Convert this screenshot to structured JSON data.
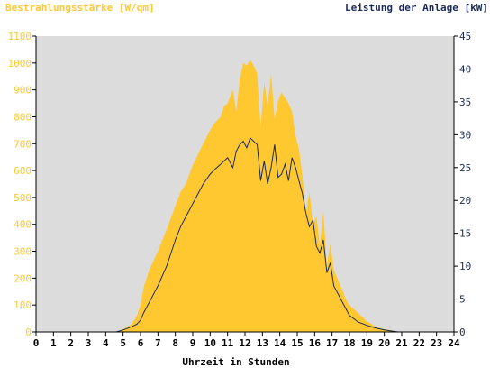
{
  "chart_data": {
    "type": "area",
    "left_axis_title": "Bestrahlungsstärke [W/qm]",
    "right_axis_title": "Leistung der Anlage [kW]",
    "xlabel": "Uhrzeit in Stunden",
    "x_range": [
      0,
      24
    ],
    "x_ticks": [
      "0",
      "1",
      "2",
      "3",
      "4",
      "5",
      "6",
      "7",
      "8",
      "9",
      "10",
      "11",
      "12",
      "13",
      "14",
      "15",
      "16",
      "17",
      "18",
      "19",
      "20",
      "21",
      "22",
      "23",
      "24"
    ],
    "left_range": [
      0,
      1100
    ],
    "left_ticks": [
      "0",
      "100",
      "200",
      "300",
      "400",
      "500",
      "600",
      "700",
      "800",
      "900",
      "1000",
      "1100"
    ],
    "right_range": [
      0,
      45
    ],
    "right_ticks": [
      "0",
      "5",
      "10",
      "15",
      "20",
      "25",
      "30",
      "35",
      "40",
      "45"
    ],
    "grid": false,
    "colors": {
      "plot_background": "#dcdcdc",
      "irradiance_fill": "#ffc830",
      "power_line": "#1a2a5a",
      "left_axis_text": "#ffc830",
      "right_axis_text": "#1a2a5a"
    },
    "series": [
      {
        "axis": "left",
        "x": [
          0,
          4.6,
          5.0,
          5.5,
          5.8,
          6.0,
          6.2,
          6.5,
          7.0,
          7.5,
          8.0,
          8.3,
          8.6,
          9.0,
          9.3,
          9.6,
          10.0,
          10.3,
          10.6,
          10.8,
          11.0,
          11.3,
          11.5,
          11.7,
          11.9,
          12.1,
          12.3,
          12.5,
          12.7,
          12.9,
          13.1,
          13.3,
          13.5,
          13.7,
          13.9,
          14.1,
          14.3,
          14.5,
          14.7,
          14.9,
          15.1,
          15.3,
          15.5,
          15.7,
          15.9,
          16.1,
          16.3,
          16.5,
          16.7,
          16.9,
          17.1,
          17.3,
          17.5,
          17.8,
          18.0,
          18.5,
          19.0,
          19.5,
          20.0,
          20.5,
          20.8,
          24
        ],
        "y": [
          0,
          0,
          10,
          30,
          60,
          100,
          170,
          230,
          300,
          380,
          470,
          520,
          550,
          620,
          660,
          700,
          750,
          780,
          800,
          840,
          850,
          900,
          820,
          940,
          1000,
          990,
          1010,
          990,
          960,
          760,
          930,
          840,
          960,
          790,
          860,
          890,
          870,
          850,
          820,
          730,
          680,
          580,
          440,
          520,
          400,
          430,
          320,
          450,
          240,
          330,
          230,
          200,
          170,
          120,
          100,
          70,
          40,
          20,
          10,
          5,
          0,
          0
        ]
      },
      {
        "axis": "right",
        "x": [
          0,
          4.6,
          5.0,
          5.5,
          5.8,
          6.0,
          6.2,
          6.5,
          7.0,
          7.5,
          8.0,
          8.3,
          8.6,
          9.0,
          9.3,
          9.6,
          10.0,
          10.3,
          10.6,
          10.8,
          11.0,
          11.3,
          11.5,
          11.7,
          11.9,
          12.1,
          12.3,
          12.5,
          12.7,
          12.9,
          13.1,
          13.3,
          13.5,
          13.7,
          13.9,
          14.1,
          14.3,
          14.5,
          14.7,
          14.9,
          15.1,
          15.3,
          15.5,
          15.7,
          15.9,
          16.1,
          16.3,
          16.5,
          16.7,
          16.9,
          17.1,
          17.3,
          17.5,
          17.8,
          18.0,
          18.5,
          19.0,
          19.5,
          20.0,
          20.5,
          20.8,
          24
        ],
        "y": [
          0,
          0,
          0.3,
          0.8,
          1.2,
          1.8,
          3.0,
          4.5,
          7.0,
          10.0,
          14.0,
          16.0,
          17.5,
          19.5,
          21.0,
          22.5,
          24.0,
          24.8,
          25.5,
          26.0,
          26.5,
          25.0,
          27.5,
          28.5,
          29.0,
          28.0,
          29.5,
          29.0,
          28.5,
          23.0,
          26.0,
          22.5,
          25.0,
          28.5,
          23.5,
          24.0,
          25.5,
          23.0,
          26.5,
          25.0,
          23.0,
          21.0,
          18.0,
          16.0,
          17.0,
          13.0,
          12.0,
          14.0,
          9.0,
          10.5,
          7.0,
          6.0,
          5.0,
          3.5,
          2.5,
          1.5,
          1.0,
          0.6,
          0.3,
          0.1,
          0,
          0
        ]
      }
    ]
  }
}
